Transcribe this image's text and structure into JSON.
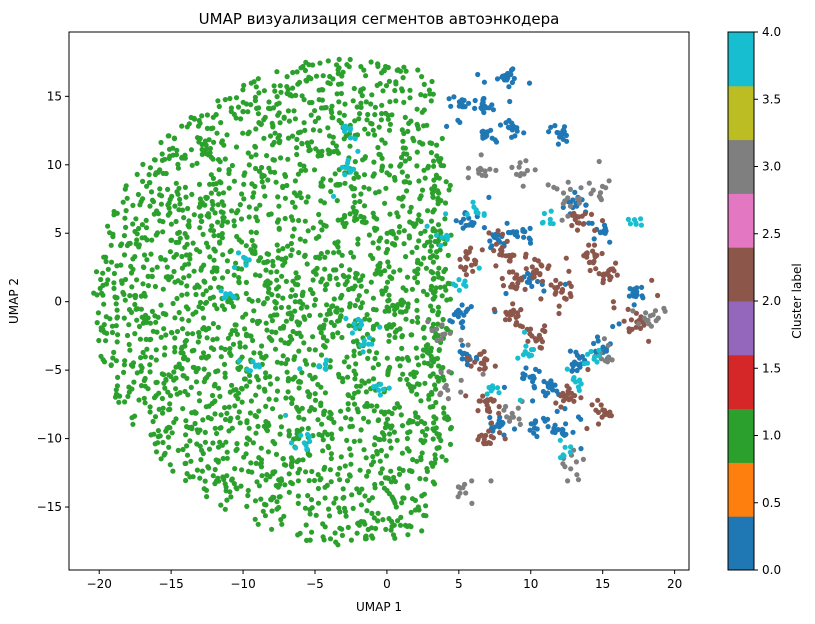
{
  "chart_data": {
    "type": "scatter",
    "title": "UMAP визуализация сегментов автоэнкодера",
    "xlabel": "UMAP 1",
    "ylabel": "UMAP 2",
    "xlim": [
      -22.1,
      21.0
    ],
    "ylim": [
      -19.6,
      19.7
    ],
    "x_ticks": [
      -20,
      -15,
      -10,
      -5,
      0,
      5,
      10,
      15,
      20
    ],
    "y_ticks": [
      -15,
      -10,
      -5,
      0,
      5,
      10,
      15
    ],
    "grid": false,
    "colormap": "tab10",
    "colorbar": {
      "label": "Cluster label",
      "range": [
        0.0,
        4.0
      ],
      "ticks": [
        "0.0",
        "0.5",
        "1.0",
        "1.5",
        "2.0",
        "2.5",
        "3.0",
        "3.5",
        "4.0"
      ],
      "colors": [
        "#1f77b4",
        "#ff7f0e",
        "#2ca02c",
        "#d62728",
        "#9467bd",
        "#8c564b",
        "#e377c2",
        "#7f7f7f",
        "#bcbd22",
        "#17becf"
      ]
    },
    "series": [
      {
        "cluster": 1,
        "color": "#2ca02c",
        "region": "dense disc spanning x ≈ -20.5 to 4, y ≈ -18 to 18"
      },
      {
        "cluster": 0,
        "color": "#1f77b4",
        "region": "tight clumps, x ≈ 4.5 to 16, y ≈ -10 to 16.5"
      },
      {
        "cluster": 2,
        "color": "#8c564b",
        "region": "clumps, x ≈ 4.5 to 17.5, y ≈ -8 to 10"
      },
      {
        "cluster": 3,
        "color": "#7f7f7f",
        "region": "scattered points and clumps, x ≈ 3.5 to 18.5, y ≈ -14 to 12"
      },
      {
        "cluster": 4,
        "color": "#17becf",
        "region": "small clumps, x ≈ -12 to 17, y ≈ -13 to 14"
      }
    ]
  }
}
